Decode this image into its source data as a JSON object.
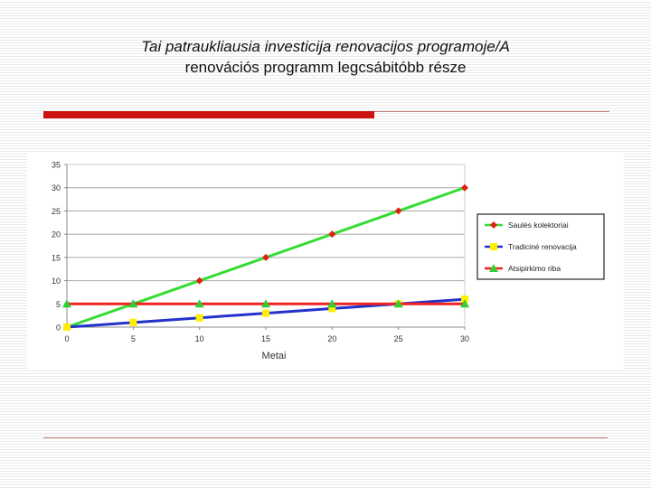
{
  "slide": {
    "title_line1": "Tai patraukliausia investicija renovacijos programoje/A",
    "title_line2": "renovációs programm legcsábitóbb része"
  },
  "chart_data": {
    "type": "line",
    "xlabel": "Metai",
    "ylabel": "",
    "xlim": [
      0,
      30
    ],
    "ylim": [
      0,
      35
    ],
    "x_ticks": [
      0,
      5,
      10,
      15,
      20,
      25,
      30
    ],
    "y_ticks": [
      0,
      5,
      10,
      15,
      20,
      25,
      30,
      35
    ],
    "grid": true,
    "legend_position": "right",
    "series": [
      {
        "name": "Saulės kolektoriai",
        "color": "#33dd33",
        "marker": "diamond",
        "marker_color": "#dd2211",
        "x": [
          0,
          5,
          10,
          15,
          20,
          25,
          30
        ],
        "y": [
          0,
          5,
          10,
          15,
          20,
          25,
          30
        ]
      },
      {
        "name": "Tradicinė renovacija",
        "color": "#2233cc",
        "marker": "square",
        "marker_color": "#ffee00",
        "x": [
          0,
          5,
          10,
          15,
          20,
          25,
          30
        ],
        "y": [
          0,
          1,
          2,
          3,
          4,
          5,
          6
        ]
      },
      {
        "name": "Atsipirkimo riba",
        "color": "#ee2222",
        "marker": "triangle",
        "marker_color": "#33cc33",
        "x": [
          0,
          5,
          10,
          15,
          20,
          25,
          30
        ],
        "y": [
          5,
          5,
          5,
          5,
          5,
          5,
          5
        ]
      }
    ]
  }
}
